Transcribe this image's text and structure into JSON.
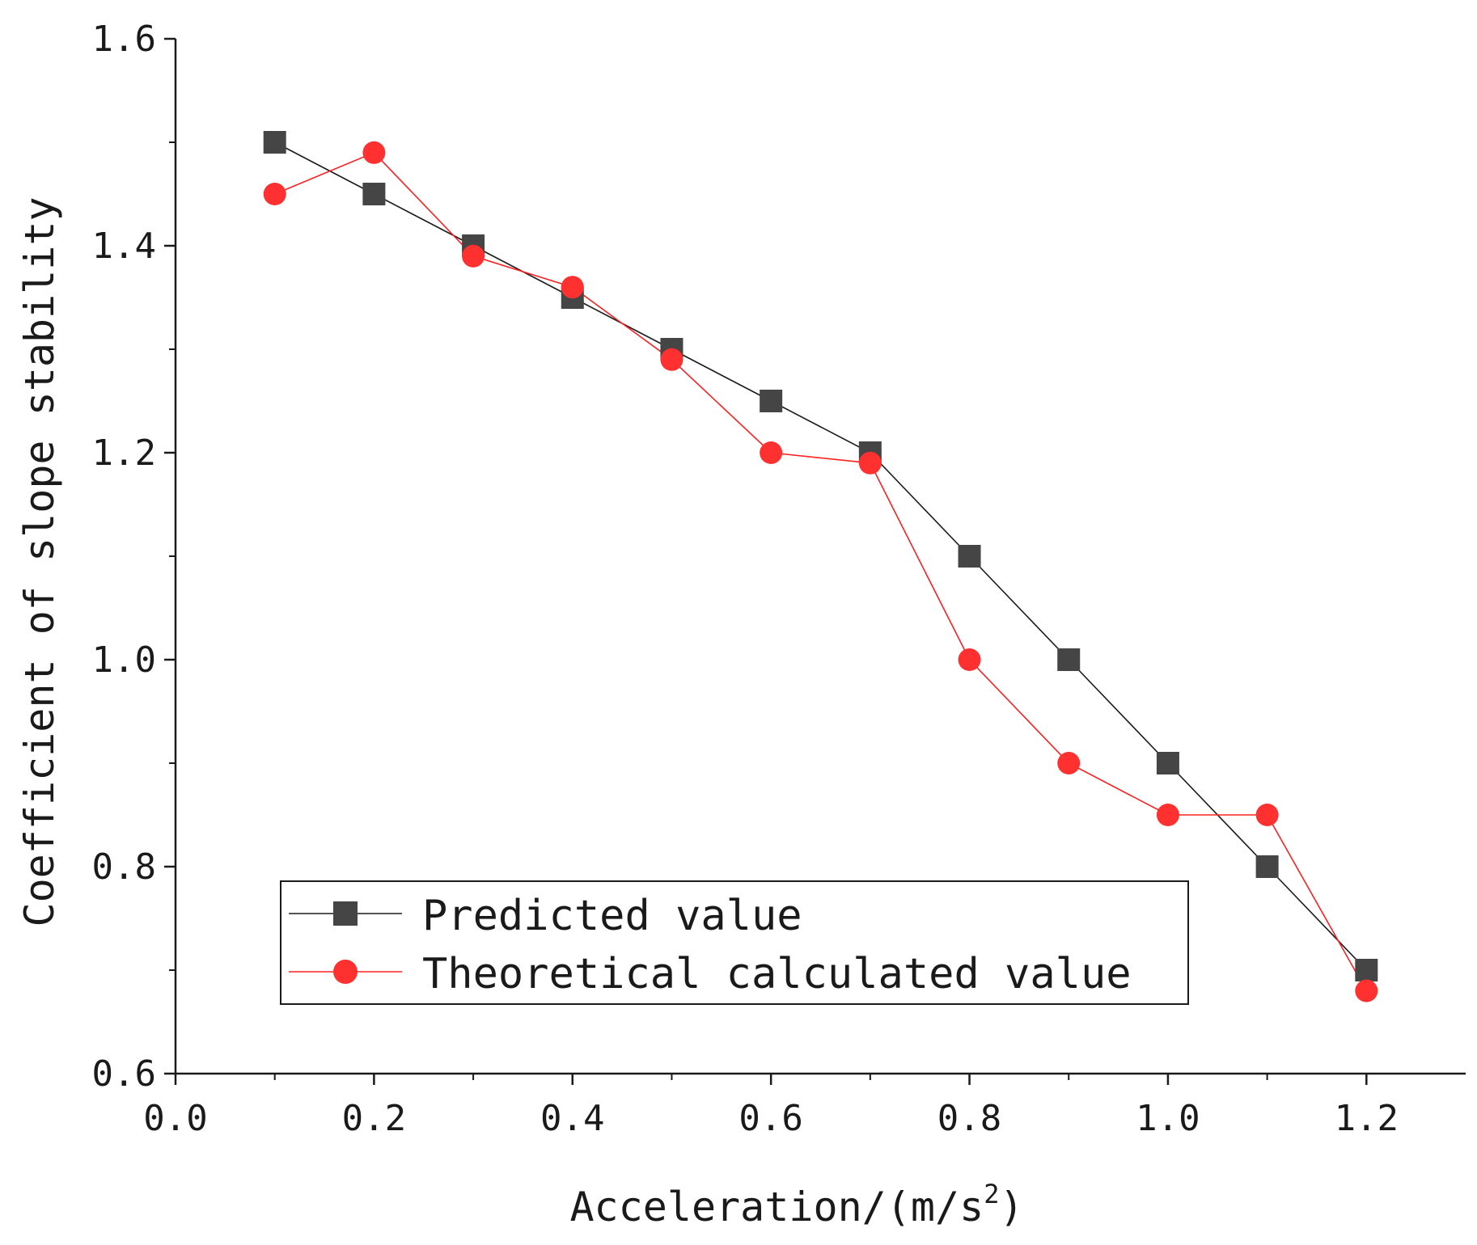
{
  "chart_data": {
    "type": "line",
    "title": "",
    "xlabel": "Acceleration/(m/s",
    "xlabel_sup": "2",
    "xlabel_close": ")",
    "ylabel": "Coefficient of slope stability",
    "xlim": [
      0.0,
      1.3
    ],
    "ylim": [
      0.6,
      1.6
    ],
    "xticks": [
      0.0,
      0.2,
      0.4,
      0.6,
      0.8,
      1.0,
      1.2
    ],
    "xtick_labels": [
      "0.0",
      "0.2",
      "0.4",
      "0.6",
      "0.8",
      "1.0",
      "1.2"
    ],
    "yticks": [
      0.6,
      0.8,
      1.0,
      1.2,
      1.4,
      1.6
    ],
    "ytick_labels": [
      "0.6",
      "0.8",
      "1.0",
      "1.2",
      "1.4",
      "1.6"
    ],
    "grid": false,
    "legend_position": "bottom-left",
    "x": [
      0.1,
      0.2,
      0.3,
      0.4,
      0.5,
      0.6,
      0.7,
      0.8,
      0.9,
      1.0,
      1.1,
      1.2
    ],
    "series": [
      {
        "name": "Predicted value",
        "marker": "square",
        "line_color": "#1a1a1a",
        "marker_color": "#454545",
        "values": [
          1.5,
          1.45,
          1.4,
          1.35,
          1.3,
          1.25,
          1.2,
          1.1,
          1.0,
          0.9,
          0.8,
          0.7
        ]
      },
      {
        "name": "Theoretical calculated value",
        "marker": "circle",
        "line_color": "#ff2020",
        "marker_color": "#ff3030",
        "values": [
          1.45,
          1.49,
          1.39,
          1.36,
          1.29,
          1.2,
          1.19,
          1.0,
          0.9,
          0.85,
          0.85,
          0.68
        ]
      }
    ]
  }
}
